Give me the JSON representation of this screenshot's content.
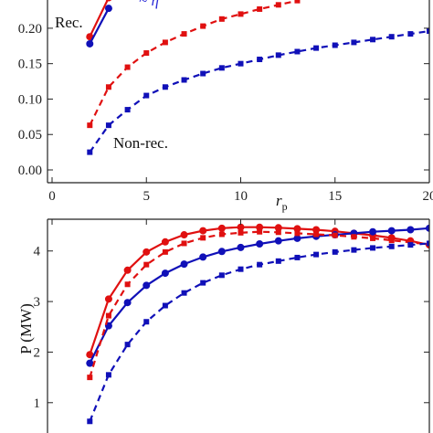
{
  "colors": {
    "red": "#e01010",
    "blue": "#1010b8",
    "axis": "#222222"
  },
  "chart_data": [
    {
      "type": "line",
      "x_axis": {
        "label": "r",
        "label_sub": "p",
        "range": [
          0,
          20
        ],
        "ticks": [
          "0",
          "5",
          "10",
          "15",
          "20"
        ]
      },
      "y_axis": {
        "label": "",
        "range": [
          0,
          0.245
        ],
        "ticks": [
          "0.00",
          "0.05",
          "0.10",
          "0.15",
          "0.20"
        ]
      },
      "annotations": {
        "rec": "Rec.",
        "nonrec": "Non-rec.",
        "legend_fragment": "~ η"
      },
      "grid": false,
      "series": [
        {
          "color": "red",
          "style": "solid",
          "marker": "circle",
          "x": [
            2,
            3
          ],
          "y": [
            0.188,
            0.243
          ]
        },
        {
          "color": "blue",
          "style": "solid",
          "marker": "circle",
          "x": [
            2,
            3
          ],
          "y": [
            0.178,
            0.228
          ]
        },
        {
          "color": "red",
          "style": "dashed",
          "marker": "square",
          "x": [
            2,
            3,
            4,
            5,
            6,
            7,
            8,
            9,
            10,
            11,
            12,
            13
          ],
          "y": [
            0.063,
            0.117,
            0.145,
            0.165,
            0.18,
            0.192,
            0.203,
            0.213,
            0.22,
            0.227,
            0.233,
            0.239
          ]
        },
        {
          "color": "blue",
          "style": "dashed",
          "marker": "square",
          "x": [
            2,
            3,
            4,
            5,
            6,
            7,
            8,
            9,
            10,
            11,
            12,
            13,
            14,
            15,
            16,
            17,
            18,
            19,
            20
          ],
          "y": [
            0.025,
            0.063,
            0.085,
            0.105,
            0.117,
            0.127,
            0.136,
            0.144,
            0.15,
            0.156,
            0.162,
            0.167,
            0.172,
            0.176,
            0.18,
            0.184,
            0.188,
            0.192,
            0.196
          ]
        }
      ]
    },
    {
      "type": "line",
      "x_axis": {
        "label": "",
        "range": [
          0,
          20
        ],
        "ticks": []
      },
      "y_axis": {
        "label": "P (MW)",
        "range": [
          0.4,
          4.7
        ],
        "ticks": [
          "1",
          "2",
          "3",
          "4"
        ]
      },
      "grid": false,
      "series": [
        {
          "color": "red",
          "style": "solid",
          "marker": "circle",
          "x": [
            2,
            3,
            4,
            5,
            6,
            7,
            8,
            9,
            10,
            11,
            12,
            13,
            14,
            15,
            16,
            17,
            18,
            19,
            20
          ],
          "y": [
            1.95,
            3.05,
            3.62,
            3.98,
            4.18,
            4.32,
            4.4,
            4.45,
            4.47,
            4.47,
            4.46,
            4.44,
            4.42,
            4.39,
            4.35,
            4.31,
            4.26,
            4.2,
            4.12
          ]
        },
        {
          "color": "blue",
          "style": "solid",
          "marker": "circle",
          "x": [
            2,
            3,
            4,
            5,
            6,
            7,
            8,
            9,
            10,
            11,
            12,
            13,
            14,
            15,
            16,
            17,
            18,
            19,
            20
          ],
          "y": [
            1.78,
            2.52,
            2.98,
            3.32,
            3.56,
            3.74,
            3.88,
            3.99,
            4.07,
            4.14,
            4.2,
            4.25,
            4.29,
            4.32,
            4.35,
            4.38,
            4.4,
            4.42,
            4.45
          ]
        },
        {
          "color": "red",
          "style": "dashed",
          "marker": "square",
          "x": [
            2,
            3,
            4,
            5,
            6,
            7,
            8,
            9,
            10,
            11,
            12,
            13,
            14,
            15,
            16,
            17,
            18,
            19,
            20
          ],
          "y": [
            1.5,
            2.72,
            3.34,
            3.73,
            3.98,
            4.15,
            4.26,
            4.33,
            4.36,
            4.38,
            4.37,
            4.35,
            4.33,
            4.31,
            4.28,
            4.25,
            4.21,
            4.17,
            4.13
          ]
        },
        {
          "color": "blue",
          "style": "dashed",
          "marker": "square",
          "x": [
            2,
            3,
            4,
            5,
            6,
            7,
            8,
            9,
            10,
            11,
            12,
            13,
            14,
            15,
            16,
            17,
            18,
            19,
            20
          ],
          "y": [
            0.63,
            1.55,
            2.15,
            2.6,
            2.92,
            3.17,
            3.37,
            3.52,
            3.64,
            3.73,
            3.8,
            3.87,
            3.93,
            3.98,
            4.02,
            4.06,
            4.09,
            4.12,
            4.15
          ]
        }
      ]
    }
  ]
}
